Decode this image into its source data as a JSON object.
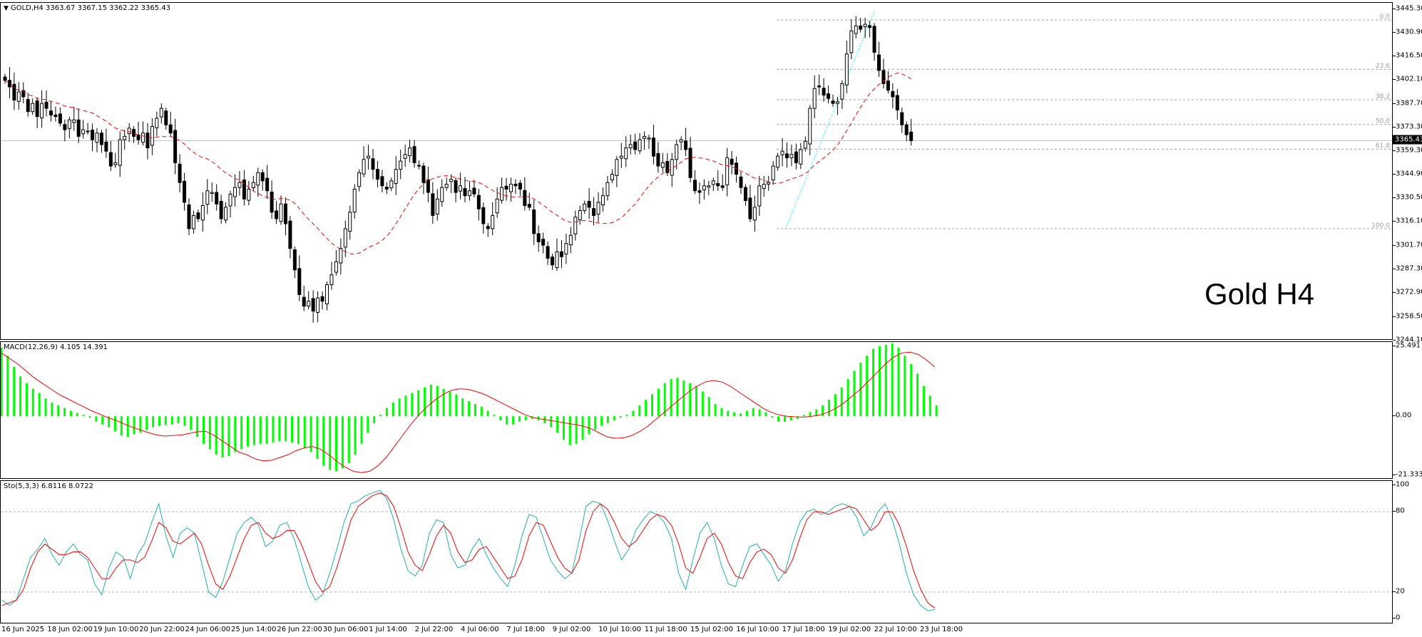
{
  "chart_title": "Gold H4",
  "main": {
    "header": "GOLD,H4  3363.67 3367.15 3362.22 3365.43",
    "symbol": "GOLD",
    "timeframe": "H4",
    "ohlc": {
      "open": 3363.67,
      "high": 3367.15,
      "low": 3362.22,
      "close": 3365.43
    },
    "current_price": "3365.43",
    "price_ticks": [
      "3445.30",
      "3430.90",
      "3416.50",
      "3402.10",
      "3387.70",
      "3373.30",
      "3359.30",
      "3344.90",
      "3330.50",
      "3316.10",
      "3301.70",
      "3287.30",
      "3272.90",
      "3258.50",
      "3244.10"
    ],
    "fib_levels": [
      {
        "label": "0.0",
        "price": 3438.6
      },
      {
        "label": "23.6",
        "price": 3408.7
      },
      {
        "label": "38.2",
        "price": 3390.2
      },
      {
        "label": "50.0",
        "price": 3375.2
      },
      {
        "label": "61.8",
        "price": 3360.3
      },
      {
        "label": "100.0",
        "price": 3312.0
      }
    ]
  },
  "macd": {
    "header": "MACD(12,26,9) 4.105 14.391",
    "params": "12,26,9",
    "value": 4.105,
    "signal": 14.391,
    "ticks": [
      "25.491",
      "0.00",
      "-21.333"
    ]
  },
  "stoch": {
    "header": "Sto(5,3,3) 6.8116 8.0722",
    "params": "5,3,3",
    "k": 6.8116,
    "d": 8.0722,
    "ticks": [
      "100",
      "80",
      "20",
      "0"
    ]
  },
  "time_labels": [
    "16 Jun 2025",
    "18 Jun 02:00",
    "19 Jun 10:00",
    "20 Jun 22:00",
    "24 Jun 06:00",
    "25 Jun 14:00",
    "26 Jun 22:00",
    "30 Jun 06:00",
    "1 Jul 14:00",
    "2 Jul 22:00",
    "4 Jul 06:00",
    "7 Jul 18:00",
    "9 Jul 02:00",
    "10 Jul 10:00",
    "11 Jul 18:00",
    "15 Jul 02:00",
    "16 Jul 10:00",
    "17 Jul 18:00",
    "19 Jul 02:00",
    "22 Jul 10:00",
    "23 Jul 18:00"
  ],
  "colors": {
    "bull_fill": "#ffffff",
    "bear_fill": "#000000",
    "ma_line": "#ff0000",
    "macd_hist": "#00ff00",
    "macd_signal": "#ff0000",
    "stoch_k": "#20b2aa",
    "stoch_d": "#ff0000",
    "fib_line": "#a0a0a0",
    "fib_trend": "#00ffff"
  },
  "chart_data": {
    "type": "candlestick",
    "title": "Gold H4",
    "ylim": [
      3244.1,
      3449.0
    ],
    "closes": [
      3402,
      3398,
      3390,
      3395,
      3392,
      3383,
      3388,
      3380,
      3388,
      3385,
      3381,
      3380,
      3376,
      3372,
      3378,
      3378,
      3368,
      3372,
      3371,
      3366,
      3370,
      3363,
      3359,
      3350,
      3352,
      3366,
      3368,
      3373,
      3368,
      3366,
      3370,
      3361,
      3374,
      3379,
      3385,
      3375,
      3370,
      3352,
      3340,
      3328,
      3312,
      3320,
      3318,
      3326,
      3335,
      3334,
      3327,
      3318,
      3325,
      3333,
      3337,
      3340,
      3330,
      3336,
      3340,
      3346,
      3341,
      3335,
      3322,
      3318,
      3327,
      3315,
      3300,
      3287,
      3272,
      3265,
      3268,
      3262,
      3270,
      3268,
      3278,
      3284,
      3292,
      3300,
      3312,
      3322,
      3336,
      3346,
      3354,
      3356,
      3348,
      3342,
      3338,
      3336,
      3341,
      3348,
      3353,
      3357,
      3361,
      3352,
      3350,
      3340,
      3334,
      3320,
      3330,
      3337,
      3339,
      3342,
      3334,
      3338,
      3332,
      3335,
      3333,
      3324,
      3315,
      3312,
      3320,
      3330,
      3337,
      3336,
      3339,
      3338,
      3336,
      3326,
      3325,
      3309,
      3304,
      3302,
      3294,
      3290,
      3298,
      3295,
      3303,
      3308,
      3319,
      3323,
      3327,
      3325,
      3320,
      3328,
      3332,
      3340,
      3345,
      3354,
      3356,
      3361,
      3363,
      3360,
      3366,
      3368,
      3367,
      3356,
      3350,
      3352,
      3346,
      3354,
      3363,
      3366,
      3360,
      3343,
      3335,
      3334,
      3338,
      3338,
      3341,
      3338,
      3337,
      3355,
      3351,
      3345,
      3337,
      3329,
      3318,
      3325,
      3338,
      3339,
      3340,
      3350,
      3356,
      3359,
      3355,
      3357,
      3352,
      3360,
      3365,
      3385,
      3397,
      3398,
      3393,
      3391,
      3388,
      3389,
      3400,
      3418,
      3432,
      3435,
      3433,
      3436,
      3434,
      3419,
      3408,
      3400,
      3396,
      3392,
      3384,
      3375,
      3369,
      3365.43
    ],
    "ma_label": "moving average (dashed red)",
    "macd_hist": [
      25.0,
      22.0,
      18.0,
      14.5,
      12.0,
      10.0,
      8.5,
      6.5,
      5.0,
      4.0,
      3.0,
      2.0,
      1.2,
      0.5,
      -0.5,
      -2.0,
      -3.0,
      -4.0,
      -5.5,
      -7.0,
      -7.5,
      -6.5,
      -6.0,
      -5.0,
      -4.0,
      -3.5,
      -3.2,
      -3.0,
      -2.5,
      -3.5,
      -5.0,
      -7.5,
      -10.0,
      -12.0,
      -14.0,
      -15.0,
      -14.5,
      -13.0,
      -12.0,
      -11.0,
      -10.5,
      -10.0,
      -10.0,
      -9.5,
      -9.0,
      -9.0,
      -9.5,
      -10.0,
      -11.5,
      -13.0,
      -15.5,
      -18.0,
      -19.5,
      -20.0,
      -19.0,
      -17.0,
      -14.0,
      -10.0,
      -6.0,
      -2.5,
      0.5,
      3.0,
      5.0,
      6.5,
      7.5,
      8.5,
      9.5,
      10.5,
      11.5,
      11.0,
      10.0,
      9.0,
      8.0,
      6.5,
      5.5,
      4.5,
      3.5,
      2.0,
      0.5,
      -1.5,
      -3.0,
      -3.0,
      -2.0,
      -1.5,
      -1.0,
      -1.5,
      -2.5,
      -4.0,
      -6.0,
      -8.5,
      -10.5,
      -10.0,
      -8.5,
      -6.5,
      -5.0,
      -3.5,
      -2.5,
      -1.5,
      -0.5,
      0.5,
      2.0,
      4.0,
      6.0,
      8.0,
      10.0,
      12.0,
      13.5,
      14.0,
      13.0,
      12.0,
      11.0,
      9.0,
      7.0,
      4.5,
      3.0,
      2.0,
      1.5,
      1.0,
      2.0,
      3.0,
      2.5,
      1.5,
      -0.5,
      -2.0,
      -2.0,
      -1.5,
      -1.0,
      0.5,
      1.5,
      2.5,
      4.0,
      6.0,
      8.0,
      10.5,
      13.5,
      16.5,
      19.5,
      22.0,
      24.5,
      25.5,
      26.0,
      26.5,
      25.0,
      22.0,
      19.0,
      15.5,
      11.0,
      7.5,
      4.0
    ],
    "macd_signal": [
      23.0,
      21.0,
      19.0,
      16.5,
      14.0,
      12.0,
      10.0,
      8.0,
      6.5,
      5.0,
      3.5,
      2.0,
      0.8,
      -0.5,
      -1.5,
      -2.8,
      -4.0,
      -5.0,
      -6.0,
      -6.8,
      -7.2,
      -7.0,
      -6.8,
      -6.2,
      -5.6,
      -5.5,
      -7.0,
      -9.0,
      -11.0,
      -13.0,
      -14.0,
      -15.5,
      -16.2,
      -16.0,
      -15.0,
      -14.0,
      -12.5,
      -11.5,
      -11.0,
      -12.0,
      -14.0,
      -16.5,
      -18.5,
      -20.0,
      -20.5,
      -20.0,
      -18.0,
      -15.0,
      -11.0,
      -7.0,
      -3.0,
      0.5,
      3.5,
      6.0,
      8.0,
      9.5,
      10.0,
      9.8,
      9.0,
      8.0,
      6.5,
      5.0,
      3.5,
      2.0,
      0.5,
      -0.5,
      -1.0,
      -1.5,
      -2.0,
      -2.5,
      -3.0,
      -3.5,
      -4.5,
      -6.0,
      -7.5,
      -8.0,
      -7.8,
      -7.0,
      -5.5,
      -3.5,
      -1.0,
      1.5,
      4.0,
      6.5,
      9.0,
      11.0,
      12.5,
      13.0,
      12.5,
      11.0,
      9.0,
      7.0,
      5.0,
      3.0,
      1.5,
      0.5,
      0.0,
      -0.2,
      -0.3,
      0.0,
      0.5,
      1.5,
      3.0,
      5.0,
      7.5,
      10.0,
      13.0,
      16.0,
      19.0,
      21.5,
      23.0,
      23.3,
      22.5,
      20.5,
      18.0
    ],
    "stoch_k": [
      14,
      10,
      14,
      30,
      46,
      52,
      60,
      48,
      40,
      50,
      56,
      48,
      44,
      26,
      18,
      38,
      50,
      46,
      30,
      48,
      56,
      72,
      86,
      62,
      46,
      64,
      68,
      64,
      42,
      20,
      16,
      28,
      46,
      64,
      72,
      76,
      70,
      54,
      58,
      70,
      72,
      60,
      42,
      24,
      14,
      18,
      34,
      52,
      72,
      86,
      88,
      92,
      94,
      96,
      90,
      74,
      52,
      36,
      32,
      40,
      64,
      74,
      72,
      48,
      38,
      40,
      52,
      60,
      48,
      38,
      30,
      24,
      40,
      62,
      78,
      76,
      60,
      44,
      36,
      30,
      34,
      58,
      84,
      88,
      86,
      74,
      58,
      44,
      52,
      66,
      74,
      80,
      78,
      72,
      60,
      34,
      22,
      44,
      64,
      72,
      60,
      40,
      26,
      24,
      40,
      54,
      56,
      48,
      40,
      28,
      36,
      56,
      72,
      80,
      82,
      78,
      80,
      84,
      86,
      84,
      76,
      62,
      68,
      80,
      86,
      74,
      56,
      34,
      18,
      10,
      6,
      7
    ],
    "stoch_d": [
      10,
      12,
      14,
      22,
      38,
      50,
      56,
      52,
      48,
      48,
      50,
      50,
      46,
      38,
      30,
      30,
      38,
      44,
      44,
      42,
      46,
      58,
      72,
      68,
      58,
      56,
      60,
      64,
      56,
      40,
      26,
      22,
      32,
      46,
      60,
      70,
      72,
      64,
      60,
      62,
      66,
      66,
      56,
      42,
      28,
      20,
      24,
      38,
      56,
      74,
      84,
      88,
      92,
      94,
      92,
      84,
      68,
      50,
      40,
      36,
      48,
      62,
      70,
      64,
      50,
      42,
      44,
      52,
      54,
      46,
      38,
      30,
      32,
      44,
      62,
      72,
      70,
      58,
      46,
      38,
      34,
      44,
      66,
      80,
      86,
      82,
      72,
      60,
      54,
      58,
      66,
      74,
      78,
      76,
      70,
      56,
      38,
      34,
      46,
      60,
      64,
      56,
      42,
      32,
      30,
      42,
      50,
      52,
      48,
      38,
      34,
      44,
      60,
      74,
      80,
      80,
      78,
      80,
      82,
      84,
      82,
      74,
      66,
      70,
      80,
      80,
      70,
      54,
      36,
      22,
      12,
      8
    ]
  }
}
